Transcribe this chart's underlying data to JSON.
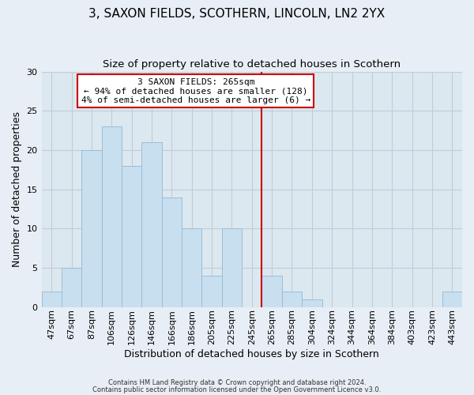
{
  "title": "3, SAXON FIELDS, SCOTHERN, LINCOLN, LN2 2YX",
  "subtitle": "Size of property relative to detached houses in Scothern",
  "xlabel": "Distribution of detached houses by size in Scothern",
  "ylabel": "Number of detached properties",
  "bar_labels": [
    "47sqm",
    "67sqm",
    "87sqm",
    "106sqm",
    "126sqm",
    "146sqm",
    "166sqm",
    "186sqm",
    "205sqm",
    "225sqm",
    "245sqm",
    "265sqm",
    "285sqm",
    "304sqm",
    "324sqm",
    "344sqm",
    "364sqm",
    "384sqm",
    "403sqm",
    "423sqm",
    "443sqm"
  ],
  "bar_values": [
    2,
    5,
    20,
    23,
    18,
    21,
    14,
    10,
    4,
    10,
    0,
    4,
    2,
    1,
    0,
    0,
    0,
    0,
    0,
    0,
    2
  ],
  "bar_color": "#c8dff0",
  "bar_edge_color": "#9bbdd4",
  "vline_x_index": 11,
  "vline_color": "#cc0000",
  "annotation_title": "3 SAXON FIELDS: 265sqm",
  "annotation_line1": "← 94% of detached houses are smaller (128)",
  "annotation_line2": "4% of semi-detached houses are larger (6) →",
  "annotation_box_color": "#ffffff",
  "annotation_box_edge": "#cc0000",
  "ylim": [
    0,
    30
  ],
  "yticks": [
    0,
    5,
    10,
    15,
    20,
    25,
    30
  ],
  "footer1": "Contains HM Land Registry data © Crown copyright and database right 2024.",
  "footer2": "Contains public sector information licensed under the Open Government Licence v3.0.",
  "bg_color": "#e8eef5",
  "plot_bg_color": "#dce8f0",
  "grid_color": "#c0cdd8",
  "title_fontsize": 11,
  "subtitle_fontsize": 9.5,
  "label_fontsize": 9,
  "tick_fontsize": 8,
  "annotation_fontsize": 8
}
